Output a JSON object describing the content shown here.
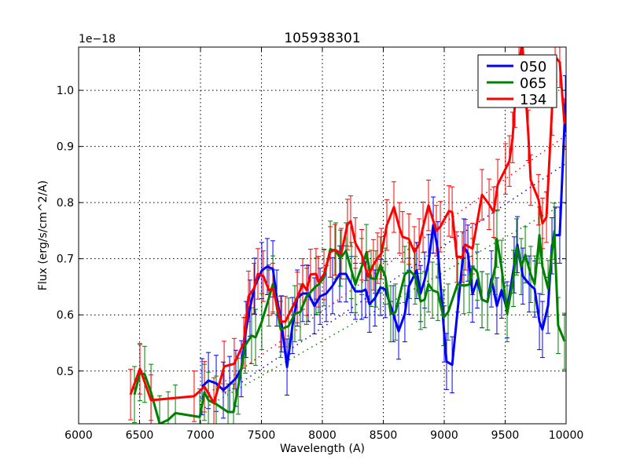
{
  "chart_data": {
    "type": "line",
    "title": "105938301",
    "xlabel": "Wavelength (A)",
    "ylabel": "Flux (erg/s/cm^2/A)",
    "offset_label": "1e−18",
    "xlim": [
      6000,
      10000
    ],
    "ylim": [
      0.406,
      1.077
    ],
    "xticks": [
      6000,
      6500,
      7000,
      7500,
      8000,
      8500,
      9000,
      9500,
      10000
    ],
    "yticks": [
      0.5,
      0.6,
      0.7,
      0.8,
      0.9,
      1.0
    ],
    "ytick_labels": [
      "0.5",
      "0.6",
      "0.7",
      "0.8",
      "0.9",
      "1.0"
    ],
    "grid": true,
    "legend_position": "top-right",
    "series": [
      {
        "name": "050",
        "color": "#0000ff",
        "error": 0.05,
        "x": [
          7013,
          7065,
          7129,
          7187,
          7239,
          7290,
          7335,
          7374,
          7406,
          7445,
          7503,
          7548,
          7594,
          7626,
          7665,
          7710,
          7755,
          7794,
          7839,
          7884,
          7935,
          7981,
          8032,
          8084,
          8142,
          8194,
          8239,
          8271,
          8323,
          8355,
          8387,
          8432,
          8477,
          8516,
          8581,
          8626,
          8677,
          8710,
          8774,
          8806,
          8839,
          8871,
          8910,
          8948,
          9000,
          9019,
          9065,
          9161,
          9194,
          9232,
          9271,
          9310,
          9355,
          9387,
          9432,
          9471,
          9516,
          9574,
          9600,
          9645,
          9697,
          9742,
          9781,
          9806,
          9852,
          9884,
          9910,
          9948,
          9994
        ],
        "y": [
          0.472,
          0.483,
          0.478,
          0.466,
          0.476,
          0.487,
          0.504,
          0.574,
          0.612,
          0.651,
          0.679,
          0.686,
          0.682,
          0.63,
          0.584,
          0.507,
          0.581,
          0.63,
          0.638,
          0.638,
          0.616,
          0.633,
          0.638,
          0.652,
          0.673,
          0.673,
          0.654,
          0.642,
          0.642,
          0.645,
          0.619,
          0.63,
          0.649,
          0.645,
          0.602,
          0.571,
          0.602,
          0.651,
          0.679,
          0.638,
          0.662,
          0.693,
          0.76,
          0.716,
          0.566,
          0.517,
          0.511,
          0.721,
          0.71,
          0.637,
          0.662,
          0.627,
          0.623,
          0.664,
          0.616,
          0.644,
          0.609,
          0.689,
          0.725,
          0.669,
          0.655,
          0.646,
          0.588,
          0.574,
          0.617,
          0.723,
          0.742,
          0.742,
          0.976
        ],
        "fit": [
          [
            7200,
            0.46
          ],
          [
            10000,
            0.87
          ]
        ]
      },
      {
        "name": "065",
        "color": "#008000",
        "error": 0.05,
        "x": [
          6458,
          6503,
          6542,
          6594,
          6665,
          6735,
          6794,
          6994,
          7032,
          7065,
          7129,
          7226,
          7271,
          7310,
          7368,
          7419,
          7452,
          7503,
          7561,
          7594,
          7658,
          7723,
          7774,
          7819,
          7871,
          7948,
          7968,
          8013,
          8065,
          8110,
          8148,
          8194,
          8239,
          8271,
          8323,
          8361,
          8400,
          8439,
          8477,
          8516,
          8561,
          8600,
          8677,
          8716,
          8761,
          8806,
          8839,
          8871,
          8903,
          8948,
          8994,
          9032,
          9110,
          9161,
          9206,
          9232,
          9271,
          9310,
          9355,
          9419,
          9432,
          9471,
          9516,
          9568,
          9594,
          9632,
          9665,
          9710,
          9742,
          9781,
          9806,
          9852,
          9903,
          9935,
          9987
        ],
        "y": [
          0.458,
          0.497,
          0.494,
          0.462,
          0.406,
          0.413,
          0.425,
          0.418,
          0.462,
          0.448,
          0.441,
          0.427,
          0.427,
          0.473,
          0.546,
          0.563,
          0.56,
          0.588,
          0.63,
          0.655,
          0.574,
          0.58,
          0.602,
          0.605,
          0.633,
          0.651,
          0.654,
          0.666,
          0.717,
          0.714,
          0.701,
          0.714,
          0.679,
          0.654,
          0.686,
          0.711,
          0.665,
          0.664,
          0.689,
          0.669,
          0.602,
          0.605,
          0.672,
          0.679,
          0.669,
          0.624,
          0.627,
          0.655,
          0.644,
          0.64,
          0.595,
          0.605,
          0.655,
          0.652,
          0.654,
          0.686,
          0.676,
          0.627,
          0.623,
          0.686,
          0.735,
          0.683,
          0.602,
          0.665,
          0.721,
          0.686,
          0.707,
          0.672,
          0.655,
          0.742,
          0.686,
          0.647,
          0.749,
          0.581,
          0.553
        ],
        "fit": [
          [
            7000,
            0.43
          ],
          [
            10000,
            0.8
          ]
        ]
      },
      {
        "name": "134",
        "color": "#ff0000",
        "error": 0.045,
        "x": [
          6426,
          6503,
          6594,
          6948,
          7032,
          7110,
          7194,
          7277,
          7355,
          7394,
          7439,
          7471,
          7516,
          7561,
          7594,
          7658,
          7697,
          7794,
          7839,
          7871,
          7903,
          7948,
          7968,
          8013,
          8065,
          8103,
          8155,
          8206,
          8232,
          8271,
          8323,
          8374,
          8419,
          8452,
          8484,
          8529,
          8587,
          8632,
          8658,
          8710,
          8755,
          8794,
          8826,
          8871,
          8935,
          8968,
          9039,
          9065,
          9103,
          9148,
          9174,
          9232,
          9310,
          9368,
          9406,
          9439,
          9503,
          9535,
          9561,
          9581,
          9613,
          9639,
          9690,
          9710,
          9774,
          9806,
          9839,
          9884,
          9910,
          9948,
          9987
        ],
        "y": [
          0.458,
          0.504,
          0.448,
          0.455,
          0.472,
          0.443,
          0.508,
          0.513,
          0.55,
          0.633,
          0.647,
          0.673,
          0.669,
          0.644,
          0.647,
          0.588,
          0.588,
          0.631,
          0.655,
          0.644,
          0.672,
          0.673,
          0.659,
          0.672,
          0.712,
          0.716,
          0.709,
          0.761,
          0.767,
          0.728,
          0.707,
          0.668,
          0.689,
          0.701,
          0.709,
          0.76,
          0.792,
          0.755,
          0.739,
          0.735,
          0.712,
          0.726,
          0.756,
          0.795,
          0.75,
          0.757,
          0.785,
          0.783,
          0.703,
          0.703,
          0.725,
          0.718,
          0.814,
          0.797,
          0.783,
          0.832,
          0.86,
          0.874,
          0.916,
          0.979,
          1.035,
          1.09,
          0.92,
          0.84,
          0.805,
          0.763,
          0.774,
          0.965,
          1.06,
          1.05,
          0.94
        ],
        "fit": [
          [
            7000,
            0.45
          ],
          [
            10000,
            0.92
          ]
        ]
      }
    ]
  }
}
